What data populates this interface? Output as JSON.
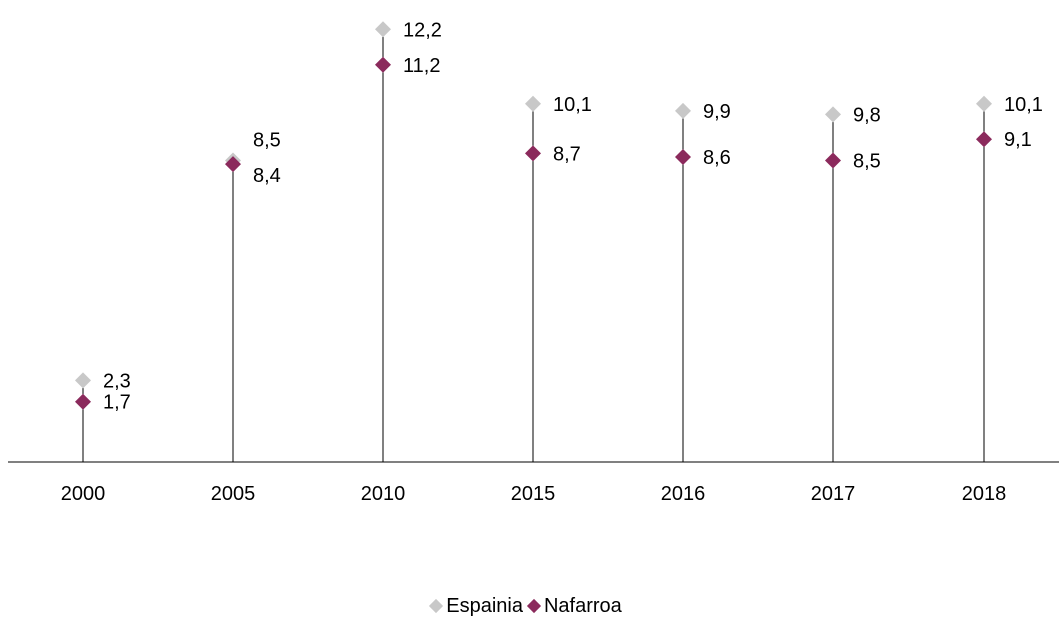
{
  "chart_data": {
    "type": "scatter",
    "categories": [
      "2000",
      "2005",
      "2010",
      "2015",
      "2016",
      "2017",
      "2018"
    ],
    "series": [
      {
        "name": "Espainia",
        "color": "#c8c8c8",
        "values": [
          2.3,
          8.5,
          12.2,
          10.1,
          9.9,
          9.8,
          10.1
        ],
        "labels": [
          "2,3",
          "8,5",
          "12,2",
          "10,1",
          "9,9",
          "9,8",
          "10,1"
        ]
      },
      {
        "name": "Nafarroa",
        "color": "#8b2a5c",
        "values": [
          1.7,
          8.4,
          11.2,
          8.7,
          8.6,
          8.5,
          9.1
        ],
        "labels": [
          "1,7",
          "8,4",
          "11,2",
          "8,7",
          "8,6",
          "8,5",
          "9,1"
        ]
      }
    ],
    "ylim": [
      0,
      12.8
    ],
    "grid": false,
    "drop_lines": true,
    "legend_position": "bottom"
  }
}
